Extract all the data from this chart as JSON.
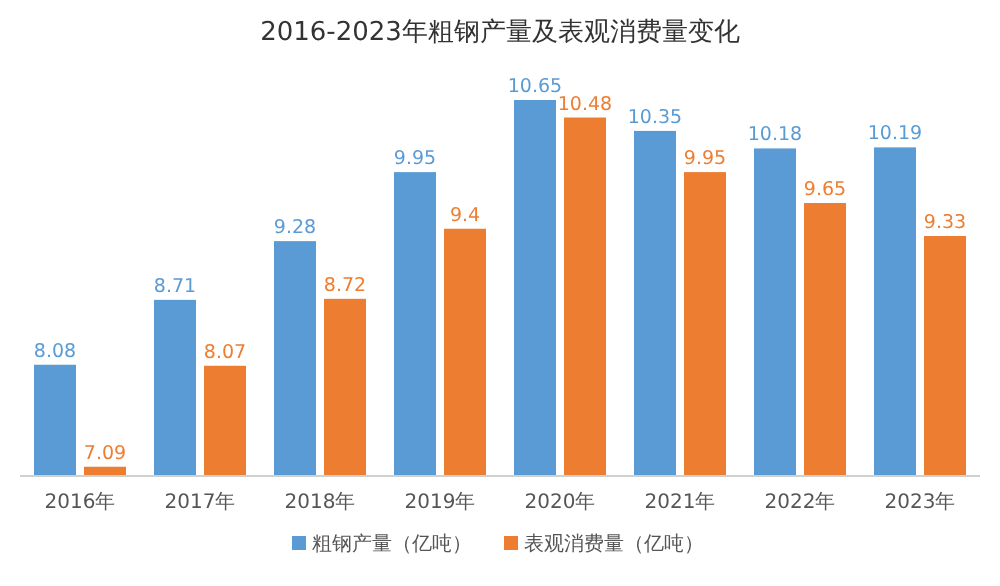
{
  "chart_data": {
    "type": "bar",
    "title": "2016-2023年粗钢产量及表观消费量变化",
    "categories": [
      "2016年",
      "2017年",
      "2018年",
      "2019年",
      "2020年",
      "2021年",
      "2022年",
      "2023年"
    ],
    "series": [
      {
        "name": "粗钢产量（亿吨）",
        "color": "#5b9bd5",
        "values": [
          8.08,
          8.71,
          9.28,
          9.95,
          10.65,
          10.35,
          10.18,
          10.19
        ]
      },
      {
        "name": "表观消费量（亿吨）",
        "color": "#ed7d31",
        "values": [
          7.09,
          8.07,
          8.72,
          9.4,
          10.48,
          9.95,
          9.65,
          9.33
        ]
      }
    ],
    "ylim": [
      7,
      10.65
    ],
    "data_labels": true,
    "legend": "bottom",
    "tick_labels": "x"
  }
}
